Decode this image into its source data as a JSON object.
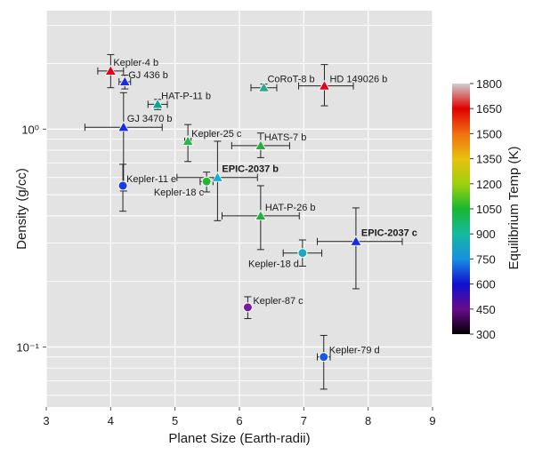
{
  "chart_data": {
    "type": "scatter",
    "xlabel": "Planet Size (Earth-radii)",
    "ylabel": "Density (g/cc)",
    "xlim": [
      3,
      9
    ],
    "ylim": [
      0.053,
      3.5
    ],
    "yscale": "log",
    "grid": true,
    "x_ticks": [
      "3",
      "4",
      "5",
      "6",
      "7",
      "8",
      "9"
    ],
    "y_ticks": [
      {
        "value": 1.0,
        "label": "10⁰"
      },
      {
        "value": 0.1,
        "label": "10⁻¹"
      }
    ],
    "colorbar": {
      "label": "Equilibrium Temp (K)",
      "range": [
        300,
        1800
      ],
      "ticks": [
        "1800",
        "1650",
        "1500",
        "1350",
        "1200",
        "1050",
        "900",
        "750",
        "600",
        "450",
        "300"
      ]
    },
    "points": [
      {
        "name": "Kepler-4 b",
        "x": 4.0,
        "y": 1.85,
        "xerr": [
          0.2,
          0.2
        ],
        "yerr": [
          0.3,
          0.35
        ],
        "marker": "triangle",
        "color": "#e0001b",
        "temp": 1650,
        "bold": false
      },
      {
        "name": "GJ 436 b",
        "x": 4.22,
        "y": 1.65,
        "xerr": [
          0.09,
          0.09
        ],
        "yerr": [
          0.12,
          0.12
        ],
        "marker": "triangle",
        "color": "#1a2be8",
        "temp": 650,
        "bold": false
      },
      {
        "name": "HAT-P-11 b",
        "x": 4.73,
        "y": 1.3,
        "xerr": [
          0.15,
          0.15
        ],
        "yerr": [
          0.07,
          0.07
        ],
        "marker": "triangle",
        "color": "#0aa88a",
        "temp": 880,
        "bold": false
      },
      {
        "name": "GJ 3470 b",
        "x": 4.2,
        "y": 1.02,
        "xerr": [
          0.6,
          0.6
        ],
        "yerr": [
          0.5,
          0.45
        ],
        "marker": "triangle",
        "color": "#1a2be8",
        "temp": 650,
        "bold": false
      },
      {
        "name": "Kepler-25 c",
        "x": 5.2,
        "y": 0.88,
        "xerr": [
          0.05,
          0.05
        ],
        "yerr": [
          0.17,
          0.17
        ],
        "marker": "triangle",
        "color": "#28b84a",
        "temp": 1000,
        "bold": false
      },
      {
        "name": "CoRoT-8 b",
        "x": 6.38,
        "y": 1.55,
        "xerr": [
          0.2,
          0.2
        ],
        "yerr": [
          0.06,
          0.06
        ],
        "marker": "triangle",
        "color": "#2ea88c",
        "temp": 900,
        "bold": false
      },
      {
        "name": "HD 149026 b",
        "x": 7.32,
        "y": 1.58,
        "xerr": [
          0.4,
          0.45
        ],
        "yerr": [
          0.3,
          0.4
        ],
        "marker": "triangle",
        "color": "#e0001b",
        "temp": 1650,
        "bold": false
      },
      {
        "name": "HATS-7 b",
        "x": 6.33,
        "y": 0.84,
        "xerr": [
          0.45,
          0.45
        ],
        "yerr": [
          0.1,
          0.12
        ],
        "marker": "triangle",
        "color": "#24b040",
        "temp": 1050,
        "bold": false
      },
      {
        "name": "Kepler-11 e",
        "x": 4.19,
        "y": 0.55,
        "xerr": [
          0.0,
          0.0
        ],
        "yerr": [
          0.13,
          0.14
        ],
        "marker": "circle",
        "color": "#1a3be8",
        "temp": 620,
        "bold": false
      },
      {
        "name": "EPIC-2037 b",
        "x": 5.66,
        "y": 0.6,
        "xerr": [
          0.63,
          0.62
        ],
        "yerr": [
          0.22,
          0.28
        ],
        "marker": "triangle",
        "color": "#1aaad8",
        "temp": 800,
        "bold": true
      },
      {
        "name": "Kepler-18 c",
        "x": 5.49,
        "y": 0.575,
        "xerr": [
          0.1,
          0.1
        ],
        "yerr": [
          0.06,
          0.06
        ],
        "marker": "circle",
        "color": "#22b830",
        "temp": 1050,
        "bold": false
      },
      {
        "name": "HAT-P-26 b",
        "x": 6.33,
        "y": 0.4,
        "xerr": [
          0.6,
          0.6
        ],
        "yerr": [
          0.12,
          0.15
        ],
        "marker": "triangle",
        "color": "#24b040",
        "temp": 1050,
        "bold": false
      },
      {
        "name": "Kepler-18 d",
        "x": 6.98,
        "y": 0.27,
        "xerr": [
          0.3,
          0.3
        ],
        "yerr": [
          0.035,
          0.04
        ],
        "marker": "circle",
        "color": "#1aaac0",
        "temp": 850,
        "bold": false
      },
      {
        "name": "EPIC-2037 c",
        "x": 7.81,
        "y": 0.305,
        "xerr": [
          0.6,
          0.72
        ],
        "yerr": [
          0.12,
          0.13
        ],
        "marker": "triangle",
        "color": "#1a2be8",
        "temp": 620,
        "bold": true
      },
      {
        "name": "Kepler-87 c",
        "x": 6.13,
        "y": 0.152,
        "xerr": [
          0.0,
          0.0
        ],
        "yerr": [
          0.017,
          0.018
        ],
        "marker": "circle",
        "color": "#7a1a9a",
        "temp": 430,
        "bold": false
      },
      {
        "name": "Kepler-79 d",
        "x": 7.31,
        "y": 0.09,
        "xerr": [
          0.1,
          0.1
        ],
        "yerr": [
          0.026,
          0.023
        ],
        "marker": "circle",
        "color": "#1a5ae0",
        "temp": 650,
        "bold": false
      }
    ]
  }
}
